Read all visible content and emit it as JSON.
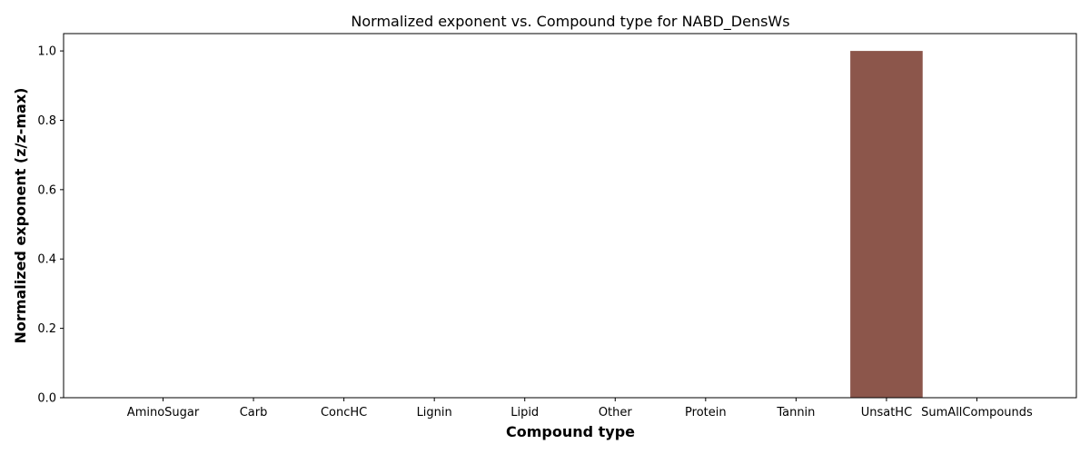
{
  "chart_data": {
    "type": "bar",
    "title": "Normalized exponent vs. Compound type for NABD_DensWs",
    "xlabel": "Compound type",
    "ylabel": "Normalized exponent (z/z-max)",
    "categories": [
      "AminoSugar",
      "Carb",
      "ConcHC",
      "Lignin",
      "Lipid",
      "Other",
      "Protein",
      "Tannin",
      "UnsatHC",
      "SumAllCompounds"
    ],
    "values": [
      0,
      0,
      0,
      0,
      0,
      0,
      0,
      0,
      1.0,
      0
    ],
    "bar_colors": [
      "#1f77b4",
      "#ff7f0e",
      "#2ca02c",
      "#d62728",
      "#9467bd",
      "#8c564b",
      "#e377c2",
      "#7f7f7f",
      "#8c564b",
      "#17becf"
    ],
    "ylim": [
      0,
      1.05
    ],
    "yticks": [
      0.0,
      0.2,
      0.4,
      0.6,
      0.8,
      1.0
    ],
    "ytick_labels": [
      "0.0",
      "0.2",
      "0.4",
      "0.6",
      "0.8",
      "1.0"
    ],
    "grid": false,
    "legend": false
  }
}
